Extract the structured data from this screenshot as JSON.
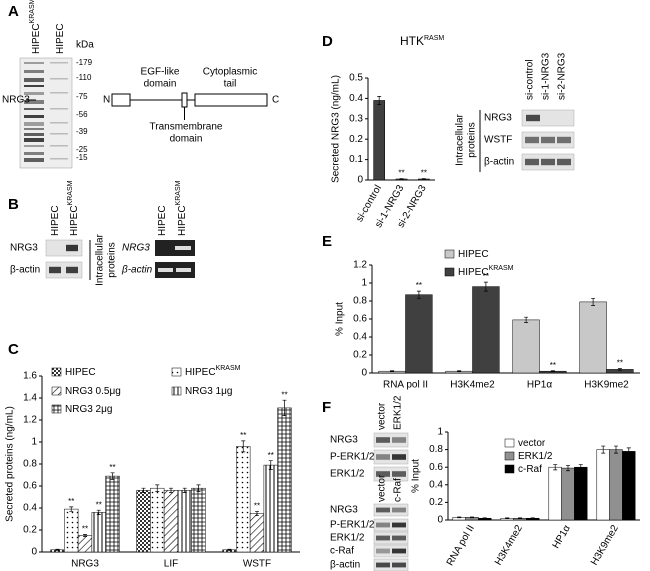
{
  "panels": {
    "A": {
      "letter": "A",
      "lanes": [
        {
          "text": "HIPEC",
          "sup": "KRASM"
        },
        {
          "text": "HIPEC"
        }
      ],
      "unit": "kDa",
      "markers": [
        "-179",
        "-110",
        "-75",
        "-56",
        "-39",
        "-25",
        "-15"
      ],
      "band_label": "NRG3",
      "domain": {
        "n": "N",
        "c": "C",
        "egf": [
          "EGF-like",
          "domain"
        ],
        "cyto": [
          "Cytoplasmic",
          "tail"
        ],
        "tm": [
          "Transmembrane",
          "domain"
        ]
      }
    },
    "B": {
      "letter": "B",
      "left_lanes": [
        {
          "text": "HIPEC"
        },
        {
          "text": "HIPEC",
          "sup": "KRASM"
        }
      ],
      "left_rows": [
        "NRG3",
        "β-actin"
      ],
      "bracket": [
        "Intracellular",
        "proteins"
      ],
      "right_lanes": [
        {
          "text": "HIPEC"
        },
        {
          "text": "HIPEC",
          "sup": "KRASM"
        }
      ],
      "right_rows": [
        "NRG3",
        "β-actin"
      ]
    },
    "C": {
      "letter": "C"
    },
    "D": {
      "letter": "D",
      "lanes": [
        "si-control",
        "si-1-NRG3",
        "si-2-NRG3"
      ],
      "rows": [
        "NRG3",
        "WSTF",
        "β-actin"
      ],
      "bracket": [
        "Intracellular",
        "proteins"
      ]
    },
    "E": {
      "letter": "E"
    },
    "F": {
      "letter": "F",
      "group1_lanes": [
        "vector",
        "ERK1/2"
      ],
      "group1_rows": [
        "NRG3",
        "P-ERK1/2",
        "ERK1/2"
      ],
      "group2_lanes": [
        "vector",
        "c-Raf"
      ],
      "group2_rows": [
        "NRG3",
        "P-ERK1/2",
        "ERK1/2",
        "c-Raf",
        "β-actin"
      ]
    }
  },
  "chart_data": [
    {
      "type": "bar",
      "ylabel": "Secreted proteins (ng/mL)",
      "categories": [
        "NRG3",
        "LIF",
        "WSTF"
      ],
      "ylim": [
        0,
        1.6
      ],
      "yticks": [
        0,
        0.2,
        0.4,
        0.6,
        0.8,
        1,
        1.2,
        1.4,
        1.6
      ],
      "series": [
        {
          "name": "HIPEC",
          "pattern": "checker",
          "values": [
            0.02,
            0.56,
            0.02
          ],
          "errors": [
            0.005,
            0.02,
            0.005
          ]
        },
        {
          "name": "HIPEC",
          "sup": "KRASM",
          "pattern": "dots",
          "values": [
            0.39,
            0.58,
            0.96
          ],
          "errors": [
            0.02,
            0.03,
            0.05
          ],
          "markers": [
            "**",
            null,
            "**"
          ]
        },
        {
          "name": "NRG3 0.5μg",
          "pattern": "diagonal",
          "values": [
            0.15,
            0.56,
            0.35
          ],
          "errors": [
            0.01,
            0.02,
            0.02
          ],
          "markers": [
            "**",
            null,
            "**"
          ]
        },
        {
          "name": "NRG3 1μg",
          "pattern": "vertical",
          "values": [
            0.36,
            0.56,
            0.79
          ],
          "errors": [
            0.02,
            0.02,
            0.04
          ],
          "markers": [
            "**",
            null,
            "**"
          ]
        },
        {
          "name": "NRG3 2μg",
          "pattern": "grid",
          "values": [
            0.69,
            0.58,
            1.31
          ],
          "errors": [
            0.03,
            0.03,
            0.07
          ],
          "markers": [
            "**",
            null,
            "**"
          ]
        }
      ]
    },
    {
      "type": "bar",
      "title": "HTK",
      "title_sup": "RASM",
      "ylabel": "Secreted NRG3 (ng/mL)",
      "categories": [
        "si-control",
        "si-1-NRG3",
        "si-2-NRG3"
      ],
      "ylim": [
        0,
        0.5
      ],
      "yticks": [
        0,
        0.1,
        0.2,
        0.3,
        0.4,
        0.5
      ],
      "series": [
        {
          "color": "#404040",
          "values": [
            0.39,
            0.005,
            0.005
          ],
          "errors": [
            0.02,
            0.002,
            0.002
          ],
          "markers": [
            null,
            "**",
            "**"
          ]
        }
      ]
    },
    {
      "type": "bar",
      "ylabel": "% Input",
      "categories": [
        "RNA pol II",
        "H3K4me2",
        "HP1α",
        "H3K9me2"
      ],
      "ylim": [
        0,
        1.2
      ],
      "yticks": [
        0,
        0.2,
        0.4,
        0.6,
        0.8,
        1,
        1.2
      ],
      "series": [
        {
          "name": "HIPEC",
          "color": "#c8c8c8",
          "values": [
            0.02,
            0.02,
            0.59,
            0.79
          ],
          "errors": [
            0.005,
            0.005,
            0.03,
            0.04
          ]
        },
        {
          "name": "HIPEC",
          "sup": "KRASM",
          "color": "#404040",
          "values": [
            0.87,
            0.96,
            0.02,
            0.04
          ],
          "errors": [
            0.04,
            0.05,
            0.005,
            0.01
          ],
          "markers": [
            "**",
            "**",
            "**",
            "**"
          ]
        }
      ]
    },
    {
      "type": "bar",
      "ylabel": "% Input",
      "categories": [
        "RNA pol II",
        "H3K4me2",
        "HP1α",
        "H3K9me2"
      ],
      "ylim": [
        0,
        1
      ],
      "yticks": [
        0,
        0.2,
        0.4,
        0.6,
        0.8,
        1
      ],
      "series": [
        {
          "name": "vector",
          "color": "#ffffff",
          "values": [
            0.03,
            0.02,
            0.6,
            0.8
          ],
          "errors": [
            0.005,
            0.005,
            0.03,
            0.04
          ]
        },
        {
          "name": "ERK1/2",
          "color": "#909090",
          "values": [
            0.03,
            0.02,
            0.59,
            0.8
          ],
          "errors": [
            0.005,
            0.005,
            0.03,
            0.04
          ]
        },
        {
          "name": "c-Raf",
          "color": "#000000",
          "values": [
            0.02,
            0.02,
            0.6,
            0.78
          ],
          "errors": [
            0.005,
            0.005,
            0.03,
            0.04
          ]
        }
      ]
    }
  ]
}
